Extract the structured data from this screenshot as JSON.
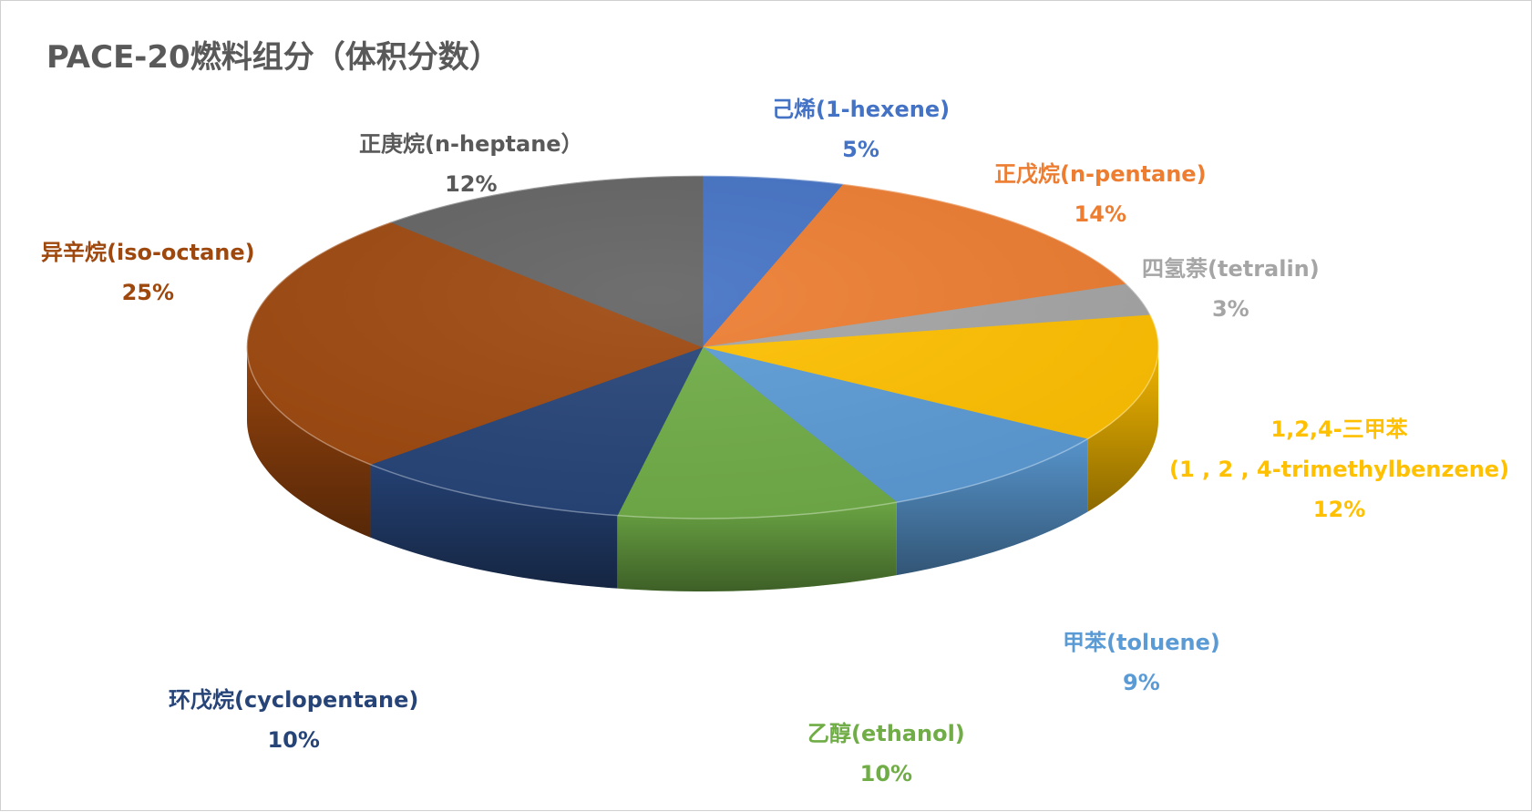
{
  "chart_data": {
    "type": "pie",
    "title": "PACE-20燃料组分（体积分数）",
    "slices": [
      {
        "name": "己烯(1-hexene)",
        "value": 5,
        "label": "5%",
        "color": "#4472C4"
      },
      {
        "name": "正戊烷(n-pentane)",
        "value": 14,
        "label": "14%",
        "color": "#ED7D31"
      },
      {
        "name": "四氢萘(tetralin)",
        "value": 3,
        "label": "3%",
        "color": "#A5A5A5"
      },
      {
        "name": "1,2,4-三甲苯",
        "name2": "(1 , 2 , 4-trimethylbenzene)",
        "value": 12,
        "label": "12%",
        "color": "#FFC000"
      },
      {
        "name": "甲苯(toluene)",
        "value": 9,
        "label": "9%",
        "color": "#5B9BD5"
      },
      {
        "name": "乙醇(ethanol)",
        "value": 10,
        "label": "10%",
        "color": "#70AD47"
      },
      {
        "name": "环戊烷(cyclopentane)",
        "value": 10,
        "label": "10%",
        "color": "#264478"
      },
      {
        "name": "异辛烷(iso-octane)",
        "value": 25,
        "label": "25%",
        "color": "#9E480E"
      },
      {
        "name": "正庚烷(n-heptane）",
        "value": 12,
        "label": "12%",
        "color": "#636363"
      }
    ],
    "start_angle": "12 o'clock",
    "direction": "clockwise",
    "style": "3d-tilted",
    "legend": "none",
    "data_labels": "outside, category name and percent"
  }
}
